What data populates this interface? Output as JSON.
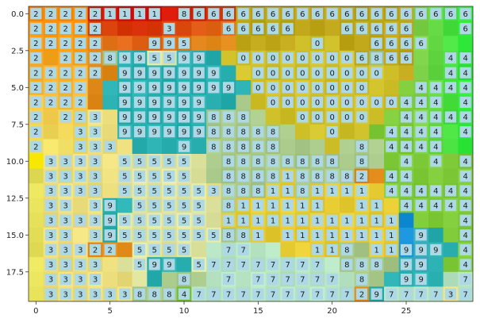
{
  "chart_data": {
    "type": "heatmap",
    "title": "",
    "xlabel": "",
    "ylabel": "",
    "xlim": [
      -0.5,
      29.5
    ],
    "ylim": [
      19.5,
      -0.5
    ],
    "x_ticks": [
      0,
      5,
      10,
      15,
      20,
      25
    ],
    "x_tick_labels": [
      "0",
      "5",
      "10",
      "15",
      "20",
      "25"
    ],
    "y_ticks": [
      0,
      2.5,
      5,
      7.5,
      10,
      12.5,
      15,
      17.5
    ],
    "y_tick_labels": [
      "0.0",
      "2.5",
      "5.0",
      "7.5",
      "10.0",
      "12.5",
      "15.0",
      "17.5"
    ],
    "grid": false,
    "label_box_color": "#add8e6",
    "cell_labels": [
      "2,2,2,2,2,1,1,1,1,,8,6,6,6,6,6,6,6,6,6,6,6,6,6,6,6,6,6,6,6",
      "2,2,2,2,2,,,,,3,,,,6,6,6,6,6,,,,6,6,6,6,6,,,,6",
      "2,2,2,2,2,,,,9,9,5,,,,,,,,,0,,,,6,6,6,6,,,",
      "2,,2,2,2,8,9,9,5,5,9,9,,,0,0,0,0,0,0,0,0,6,8,6,6,,,4,4",
      "2,2,2,2,2,,9,9,9,9,9,9,9,,,0,0,0,0,0,0,0,0,0,,,,,4,4",
      "2,2,2,2,,,9,9,9,9,9,9,9,9,,0,0,0,0,0,0,0,0,,,,4,4,4,4",
      "2,2,2,2,,,9,9,9,9,9,9,,,,,0,0,0,0,0,0,0,0,0,4,4,4,,4",
      "2,,2,2,3,,9,9,9,9,9,9,8,8,8,,,,0,0,0,0,0,,,4,4,4,4,4",
      "2,,,3,3,,9,9,9,9,9,9,8,8,8,8,8,,,,0,,,,4,4,4,4,,4",
      "2,,,3,3,3,,,,,9,,8,8,8,8,8,,,,,,8,,4,4,4,4,,",
      ",3,3,3,3,,5,5,5,5,5,,,8,8,8,8,8,8,8,8,,8,,,4,,4,,4",
      ",3,3,3,3,,5,5,5,5,5,,,8,8,8,8,1,8,8,8,8,2,,4,4,,,,4",
      ",3,3,3,3,,5,5,5,5,5,5,3,8,8,8,1,1,8,1,1,1,1,,4,4,4,4,4,4",
      ",3,3,,3,9,,5,5,5,5,5,,8,1,1,1,1,1,1,,,1,1,,4,4,4,4,4",
      ",3,3,3,3,9,5,5,5,5,5,5,,1,1,1,1,1,1,1,1,1,1,1,1,,,,,4",
      ",3,3,,3,9,5,5,5,5,5,5,5,8,8,1,,1,1,1,1,1,1,1,1,,9,,,4",
      ",3,3,3,2,2,,5,5,5,5,,,7,7,,,,,1,1,8,,1,1,9,9,9,,4",
      ",3,3,3,3,,,5,9,9,,5,7,7,7,7,7,7,7,7,,8,8,8,,9,9,,,4",
      ",3,3,3,3,,,,,,8,,,7,,7,7,7,7,7,7,,8,,,9,9,,,7,7",
      ",3,3,3,3,3,3,8,8,8,4,7,7,7,7,7,7,7,7,7,7,7,2,9,7,7,7,7,3,7"
    ],
    "region_colors": {
      "1": "#e8cc34",
      "2": "#e38c1c",
      "3": "#eedf7e",
      "4": "#7fcb3a",
      "5": "#e1e6a0",
      "6": "#bea618",
      "7": "#b8e6c4",
      "8": "#a9c98a",
      "9": "#2ab0b0",
      "0": "#d1c12a",
      "top-hot": "#dd2200"
    }
  }
}
